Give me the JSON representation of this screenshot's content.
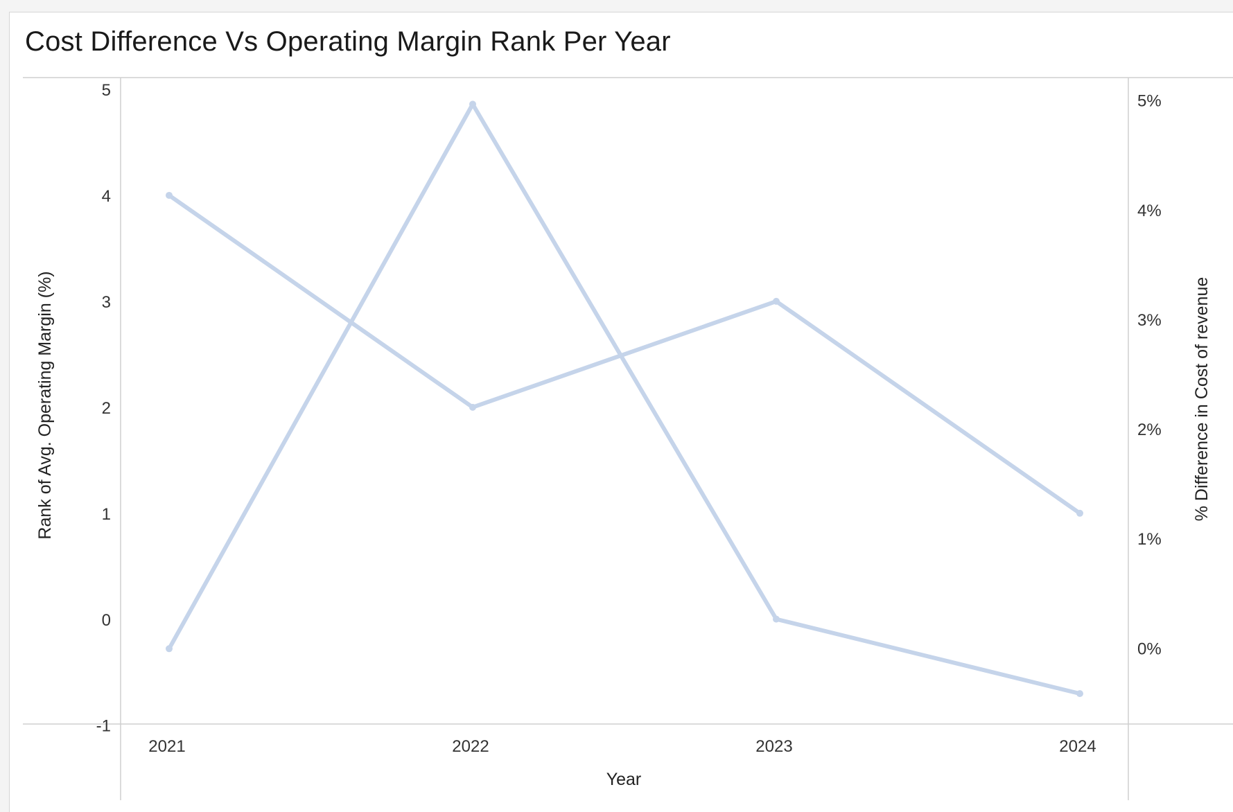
{
  "title": "Cost Difference Vs Operating Margin Rank Per Year",
  "chart_data": {
    "type": "line",
    "title": "Cost Difference Vs Operating Margin Rank Per Year",
    "xlabel": "Year",
    "ylabel_left": "Rank of Avg. Operating Margin (%)",
    "ylabel_right": "% Difference in Cost of revenue",
    "categories": [
      "2021",
      "2022",
      "2023",
      "2024"
    ],
    "left_axis": {
      "ylim": [
        -1.1,
        5.0
      ],
      "ticks": [
        -1,
        0,
        1,
        2,
        3,
        4,
        5
      ],
      "tick_labels": [
        "-1",
        "0",
        "1",
        "2",
        "3",
        "4",
        "5"
      ]
    },
    "right_axis": {
      "ylim": [
        -0.7,
        5.2
      ],
      "ticks": [
        0,
        1,
        2,
        3,
        4,
        5
      ],
      "tick_labels": [
        "0%",
        "1%",
        "2%",
        "3%",
        "4%",
        "5%"
      ]
    },
    "series": [
      {
        "axis": "left",
        "values": [
          4,
          2,
          3,
          1
        ],
        "color": "#c5d4ea"
      },
      {
        "axis": "right",
        "values": [
          0.0,
          4.97,
          0.27,
          -0.41
        ],
        "color": "#c5d4ea"
      }
    ],
    "grid": false,
    "line_color": "#c5d4ea"
  }
}
